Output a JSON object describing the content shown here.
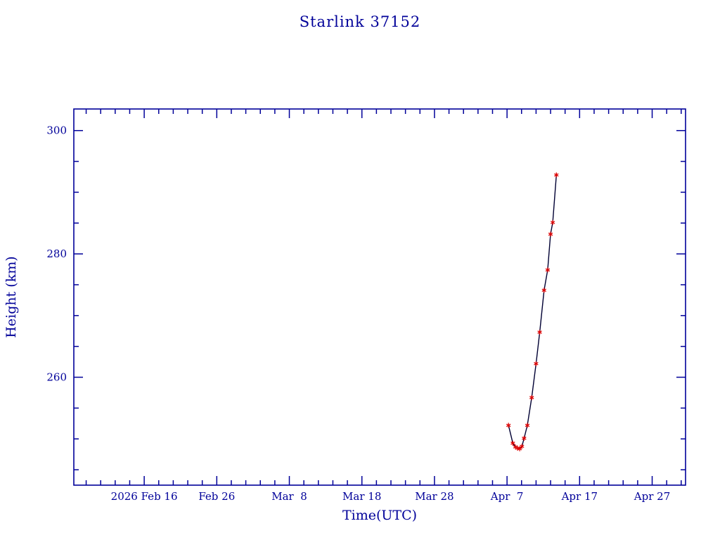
{
  "chart_data": {
    "type": "line",
    "title": "Starlink 37152",
    "xlabel": "Time(UTC)",
    "ylabel": "Height (km)",
    "x_axis_note": "x values are day-of-year 2026 (Feb 16 = 47)",
    "x_range": [
      37.3,
      121.6
    ],
    "y_range": [
      242.5,
      303.5
    ],
    "x_major_ticks": [
      {
        "day": 47,
        "label": "2026 Feb 16"
      },
      {
        "day": 57,
        "label": "Feb 26"
      },
      {
        "day": 67,
        "label": "Mar  8"
      },
      {
        "day": 77,
        "label": "Mar 18"
      },
      {
        "day": 87,
        "label": "Mar 28"
      },
      {
        "day": 97,
        "label": "Apr  7"
      },
      {
        "day": 107,
        "label": "Apr 17"
      },
      {
        "day": 117,
        "label": "Apr 27"
      }
    ],
    "x_minor_ticks": {
      "start": 39,
      "end": 121,
      "step": 2
    },
    "y_major_ticks": [
      {
        "value": 260,
        "label": "260"
      },
      {
        "value": 280,
        "label": "280"
      },
      {
        "value": 300,
        "label": "300"
      }
    ],
    "y_minor_ticks": {
      "start": 245,
      "end": 300,
      "step": 5
    },
    "series": [
      {
        "name": "height",
        "marker": "asterisk",
        "points": [
          {
            "x": 97.2,
            "y": 252.2
          },
          {
            "x": 97.8,
            "y": 249.3
          },
          {
            "x": 98.15,
            "y": 248.7
          },
          {
            "x": 98.45,
            "y": 248.5
          },
          {
            "x": 98.75,
            "y": 248.4
          },
          {
            "x": 99.05,
            "y": 248.8
          },
          {
            "x": 99.35,
            "y": 250.1
          },
          {
            "x": 99.8,
            "y": 252.2
          },
          {
            "x": 100.4,
            "y": 256.7
          },
          {
            "x": 101.0,
            "y": 262.2
          },
          {
            "x": 101.5,
            "y": 267.3
          },
          {
            "x": 102.1,
            "y": 274.1
          },
          {
            "x": 102.6,
            "y": 277.4
          },
          {
            "x": 103.0,
            "y": 283.2
          },
          {
            "x": 103.3,
            "y": 285.1
          },
          {
            "x": 103.8,
            "y": 292.8
          }
        ]
      }
    ],
    "colors": {
      "axis": "#000099",
      "line": "#000033",
      "marker": "#dd0000",
      "background": "#ffffff"
    },
    "legend": "none",
    "grid": "off"
  }
}
